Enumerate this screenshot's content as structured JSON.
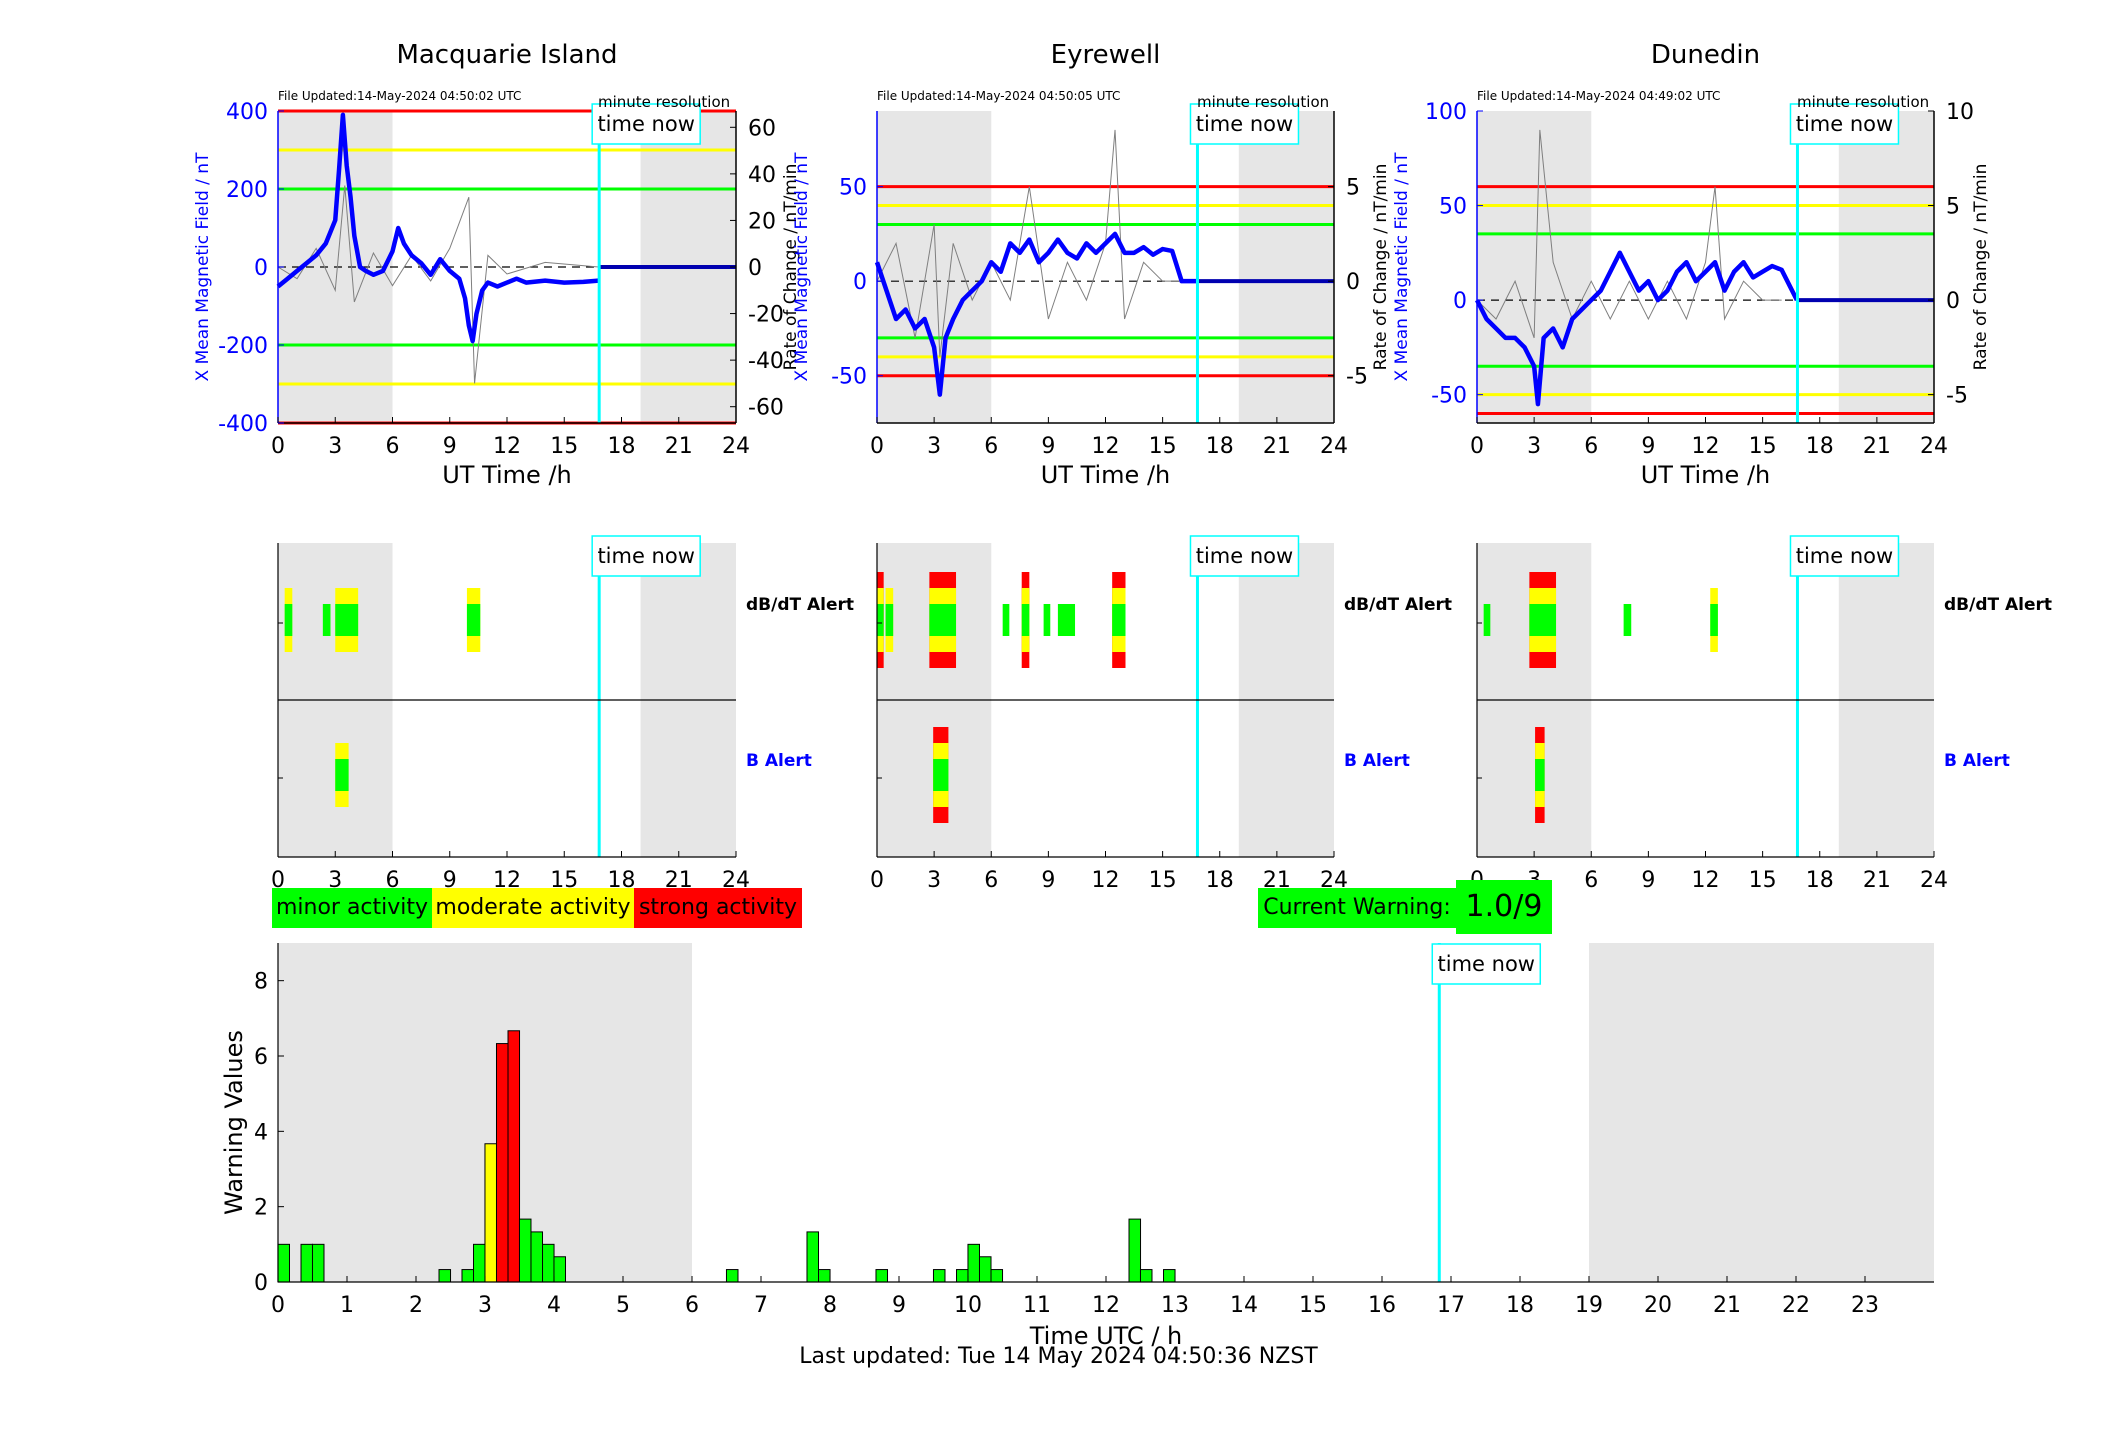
{
  "colors": {
    "minor": "#00ff00",
    "moderate": "#ffff00",
    "strong": "#ff0000",
    "field_line": "#0000ff",
    "time_now": "#00ffff",
    "night_shading": "#e6e6e6",
    "rate_line": "#7f7f7f"
  },
  "stations": [
    {
      "name": "Macquarie Island",
      "file_updated": "File Updated:14-May-2024 04:50:02 UTC",
      "resolution": "minute resolution",
      "y_left_ticks": [
        "400",
        "200",
        "0",
        "-200",
        "-400"
      ],
      "y_right_ticks": [
        "60",
        "40",
        "20",
        "0",
        "-20",
        "-40",
        "-60"
      ],
      "dbdt_label": "dB/dT Alert",
      "b_label": "B Alert"
    },
    {
      "name": "Eyrewell",
      "file_updated": "File Updated:14-May-2024 04:50:05 UTC",
      "resolution": "minute resolution",
      "y_left_ticks": [
        "50",
        "0",
        "-50"
      ],
      "y_right_ticks": [
        "5",
        "0",
        "-5"
      ],
      "dbdt_label": "dB/dT Alert",
      "b_label": "B Alert"
    },
    {
      "name": "Dunedin",
      "file_updated": "File Updated:14-May-2024 04:49:02 UTC",
      "resolution": "minute resolution",
      "y_left_ticks": [
        "100",
        "50",
        "0",
        "-50"
      ],
      "y_right_ticks": [
        "10",
        "5",
        "0",
        "-5"
      ],
      "dbdt_label": "dB/dT Alert",
      "b_label": "B Alert"
    }
  ],
  "axis": {
    "station_xlabel": "UT Time /h",
    "station_ylabel_left": "X Mean Magnetic Field / nT",
    "station_ylabel_right": "Rate of Change / nT/min",
    "x_ticks": [
      "0",
      "3",
      "6",
      "9",
      "12",
      "15",
      "18",
      "21",
      "24"
    ],
    "time_now_label": "time now"
  },
  "legend": {
    "minor": "minor activity",
    "moderate": "moderate activity",
    "strong": "strong activity"
  },
  "current_warning": {
    "label": "Current Warning:",
    "value": "1.0/9"
  },
  "last_updated": "Last updated: Tue 14 May 2024 04:50:36 NZST",
  "chart_data": [
    {
      "type": "line",
      "title": "Macquarie Island",
      "xlabel": "UT Time /h",
      "ylabel": "X Mean Magnetic Field / nT",
      "y2label": "Rate of Change / nT/min",
      "xlim": [
        0,
        24
      ],
      "ylim": [
        -400,
        400
      ],
      "y2lim": [
        -67,
        67
      ],
      "thresholds": {
        "red": [
          400,
          -400
        ],
        "yellow": [
          300,
          -300
        ],
        "green": [
          200,
          -200
        ]
      },
      "night_shading_hours": [
        [
          0,
          6
        ],
        [
          19,
          24
        ]
      ],
      "time_now": 16.83,
      "series": [
        {
          "name": "X Mean Magnetic Field",
          "x": [
            0,
            0.5,
            1,
            1.5,
            2,
            2.5,
            3,
            3.2,
            3.4,
            3.6,
            3.8,
            4,
            4.3,
            4.6,
            5,
            5.5,
            6,
            6.3,
            6.6,
            7,
            7.5,
            8,
            8.5,
            9,
            9.5,
            9.8,
            10,
            10.2,
            10.4,
            10.7,
            11,
            11.5,
            12,
            12.5,
            13,
            14,
            15,
            16,
            16.8
          ],
          "values": [
            -50,
            -30,
            -10,
            10,
            30,
            60,
            120,
            250,
            390,
            260,
            180,
            80,
            0,
            -10,
            -20,
            -10,
            40,
            100,
            60,
            30,
            10,
            -20,
            20,
            -10,
            -30,
            -80,
            -150,
            -190,
            -120,
            -60,
            -40,
            -50,
            -40,
            -30,
            -40,
            -35,
            -40,
            -38,
            -35
          ]
        },
        {
          "name": "Rate of Change",
          "x": [
            0,
            1,
            2,
            3,
            3.5,
            4,
            5,
            6,
            7,
            8,
            9,
            10,
            10.3,
            11,
            12,
            14,
            16.8
          ],
          "values": [
            0,
            -5,
            8,
            -10,
            35,
            -15,
            6,
            -8,
            5,
            -6,
            8,
            30,
            -50,
            5,
            -3,
            2,
            0
          ]
        }
      ]
    },
    {
      "type": "line",
      "title": "Eyrewell",
      "xlabel": "UT Time /h",
      "ylabel": "X Mean Magnetic Field / nT",
      "y2label": "Rate of Change / nT/min",
      "xlim": [
        0,
        24
      ],
      "ylim": [
        -75,
        90
      ],
      "y2lim": [
        -7.5,
        9
      ],
      "thresholds": {
        "red": [
          50,
          -50
        ],
        "yellow": [
          40,
          -40
        ],
        "green": [
          30,
          -30
        ]
      },
      "night_shading_hours": [
        [
          0,
          6
        ],
        [
          19,
          24
        ]
      ],
      "time_now": 16.83,
      "series": [
        {
          "name": "X Mean Magnetic Field",
          "x": [
            0,
            0.5,
            1,
            1.5,
            2,
            2.5,
            3,
            3.3,
            3.6,
            4,
            4.5,
            5,
            5.5,
            6,
            6.5,
            7,
            7.5,
            8,
            8.5,
            9,
            9.5,
            10,
            10.5,
            11,
            11.5,
            12,
            12.5,
            13,
            13.5,
            14,
            14.5,
            15,
            15.5,
            16,
            16.8
          ],
          "values": [
            10,
            -5,
            -20,
            -15,
            -25,
            -20,
            -35,
            -60,
            -30,
            -20,
            -10,
            -5,
            0,
            10,
            5,
            20,
            15,
            22,
            10,
            15,
            22,
            15,
            12,
            20,
            15,
            20,
            25,
            15,
            15,
            18,
            14,
            17,
            16,
            0,
            0
          ]
        },
        {
          "name": "Rate of Change",
          "x": [
            0,
            1,
            2,
            3,
            3.3,
            4,
            5,
            6,
            7,
            8,
            9,
            10,
            11,
            12,
            12.5,
            13,
            14,
            15,
            16
          ],
          "values": [
            0,
            2,
            -3,
            3,
            -4,
            2,
            -1,
            1,
            -1,
            5,
            -2,
            1,
            -1,
            2,
            8,
            -2,
            1,
            0,
            0
          ]
        }
      ]
    },
    {
      "type": "line",
      "title": "Dunedin",
      "xlabel": "UT Time /h",
      "ylabel": "X Mean Magnetic Field / nT",
      "y2label": "Rate of Change / nT/min",
      "xlim": [
        0,
        24
      ],
      "ylim": [
        -65,
        100
      ],
      "y2lim": [
        -6.5,
        10
      ],
      "thresholds": {
        "red": [
          60,
          -60
        ],
        "yellow": [
          50,
          -50
        ],
        "green": [
          35,
          -35
        ]
      },
      "night_shading_hours": [
        [
          0,
          6
        ],
        [
          19,
          24
        ]
      ],
      "time_now": 16.83,
      "series": [
        {
          "name": "X Mean Magnetic Field",
          "x": [
            0,
            0.5,
            1,
            1.5,
            2,
            2.5,
            3,
            3.2,
            3.5,
            4,
            4.5,
            5,
            5.5,
            6,
            6.5,
            7,
            7.5,
            8,
            8.5,
            9,
            9.5,
            10,
            10.5,
            11,
            11.5,
            12,
            12.5,
            13,
            13.5,
            14,
            14.5,
            15,
            15.5,
            16,
            16.8
          ],
          "values": [
            0,
            -10,
            -15,
            -20,
            -20,
            -25,
            -35,
            -55,
            -20,
            -15,
            -25,
            -10,
            -5,
            0,
            5,
            15,
            25,
            15,
            5,
            10,
            0,
            5,
            15,
            20,
            10,
            15,
            20,
            5,
            15,
            20,
            12,
            15,
            18,
            16,
            0
          ]
        },
        {
          "name": "Rate of Change",
          "x": [
            0,
            1,
            2,
            3,
            3.3,
            4,
            5,
            6,
            7,
            8,
            9,
            10,
            11,
            12,
            12.5,
            13,
            14,
            15,
            16
          ],
          "values": [
            0,
            -1,
            1,
            -2,
            9,
            2,
            -1,
            1,
            -1,
            1,
            -1,
            1,
            -1,
            2,
            6,
            -1,
            1,
            0,
            0
          ]
        }
      ]
    },
    {
      "type": "bar",
      "xlabel": "Time UTC / h",
      "ylabel": "Warning Values",
      "xlim": [
        0,
        24
      ],
      "ylim": [
        0,
        9
      ],
      "x_ticks": [
        "0",
        "1",
        "2",
        "3",
        "4",
        "5",
        "6",
        "7",
        "8",
        "9",
        "10",
        "11",
        "12",
        "13",
        "14",
        "15",
        "16",
        "17",
        "18",
        "19",
        "20",
        "21",
        "22",
        "23"
      ],
      "y_ticks": [
        "0",
        "2",
        "4",
        "6",
        "8"
      ],
      "night_shading_hours": [
        [
          0,
          6
        ],
        [
          19,
          24
        ]
      ],
      "time_now": 16.83,
      "bin_width_h": 0.167,
      "x": [
        0.083,
        0.417,
        0.583,
        2.417,
        2.75,
        2.917,
        3.083,
        3.25,
        3.417,
        3.583,
        3.75,
        3.917,
        4.083,
        6.583,
        7.75,
        7.917,
        8.75,
        9.583,
        9.917,
        10.083,
        10.25,
        10.417,
        12.417,
        12.583,
        12.917
      ],
      "values": [
        1.0,
        1.0,
        1.0,
        0.33,
        0.33,
        1.0,
        3.67,
        6.33,
        6.67,
        1.67,
        1.33,
        1.0,
        0.67,
        0.33,
        1.33,
        0.33,
        0.33,
        0.33,
        0.33,
        1.0,
        0.67,
        0.33,
        1.67,
        0.33,
        0.33
      ],
      "levels": [
        "minor",
        "minor",
        "minor",
        "minor",
        "minor",
        "minor",
        "moderate",
        "strong",
        "strong",
        "minor",
        "minor",
        "minor",
        "minor",
        "minor",
        "minor",
        "minor",
        "minor",
        "minor",
        "minor",
        "minor",
        "minor",
        "minor",
        "minor",
        "minor",
        "minor"
      ]
    }
  ],
  "alerts": [
    {
      "dbdt": [
        {
          "start": 0.35,
          "end": 0.75,
          "level": "moderate"
        },
        {
          "start": 2.35,
          "end": 2.75,
          "level": "minor"
        },
        {
          "start": 3.0,
          "end": 4.2,
          "level": "moderate"
        },
        {
          "start": 9.9,
          "end": 10.6,
          "level": "moderate"
        }
      ],
      "b": [
        {
          "start": 3.0,
          "end": 3.7,
          "level": "moderate"
        }
      ]
    },
    {
      "dbdt": [
        {
          "start": 0.0,
          "end": 0.35,
          "level": "strong"
        },
        {
          "start": 0.45,
          "end": 0.85,
          "level": "moderate"
        },
        {
          "start": 2.75,
          "end": 4.15,
          "level": "strong"
        },
        {
          "start": 6.6,
          "end": 6.95,
          "level": "minor"
        },
        {
          "start": 7.6,
          "end": 8.0,
          "level": "strong"
        },
        {
          "start": 8.75,
          "end": 9.1,
          "level": "minor"
        },
        {
          "start": 9.5,
          "end": 10.4,
          "level": "minor"
        },
        {
          "start": 12.35,
          "end": 13.05,
          "level": "strong"
        }
      ],
      "b": [
        {
          "start": 2.95,
          "end": 3.75,
          "level": "strong"
        }
      ]
    },
    {
      "dbdt": [
        {
          "start": 0.35,
          "end": 0.7,
          "level": "minor"
        },
        {
          "start": 2.75,
          "end": 4.15,
          "level": "strong"
        },
        {
          "start": 7.7,
          "end": 8.1,
          "level": "minor"
        },
        {
          "start": 12.25,
          "end": 12.65,
          "level": "moderate"
        }
      ],
      "b": [
        {
          "start": 3.05,
          "end": 3.55,
          "level": "strong"
        }
      ]
    }
  ]
}
